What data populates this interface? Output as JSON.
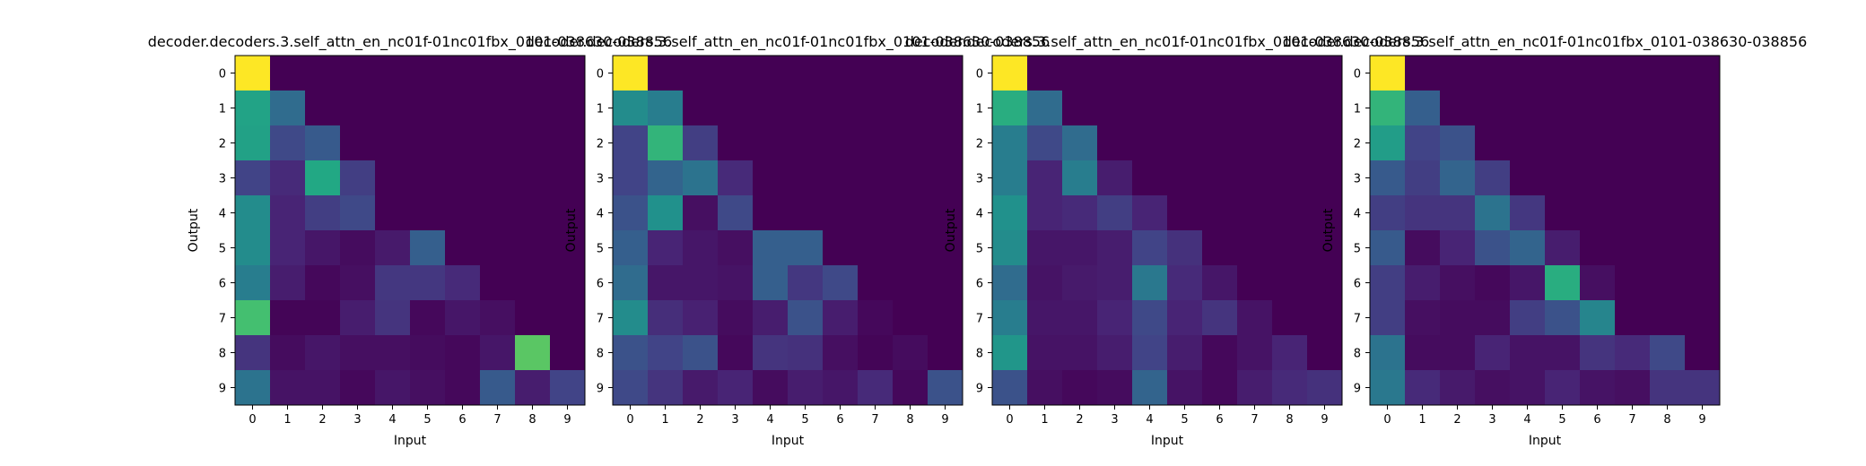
{
  "chart_data": [
    {
      "type": "heatmap",
      "title": "decoder.decoders.3.self_attn_en_nc01f-01nc01fbx_0101-038630-038856",
      "xlabel": "Input",
      "ylabel": "Output",
      "x_ticks": [
        "0",
        "1",
        "2",
        "3",
        "4",
        "5",
        "6",
        "7",
        "8",
        "9"
      ],
      "y_ticks": [
        "0",
        "1",
        "2",
        "3",
        "4",
        "5",
        "6",
        "7",
        "8",
        "9"
      ],
      "colormap": "viridis",
      "values": [
        [
          1.0,
          0.0,
          0.0,
          0.0,
          0.0,
          0.0,
          0.0,
          0.0,
          0.0,
          0.0
        ],
        [
          0.58,
          0.35,
          0.0,
          0.0,
          0.0,
          0.0,
          0.0,
          0.0,
          0.0,
          0.0
        ],
        [
          0.57,
          0.22,
          0.28,
          0.0,
          0.0,
          0.0,
          0.0,
          0.0,
          0.0,
          0.0
        ],
        [
          0.2,
          0.12,
          0.6,
          0.18,
          0.0,
          0.0,
          0.0,
          0.0,
          0.0,
          0.0
        ],
        [
          0.48,
          0.1,
          0.18,
          0.22,
          0.0,
          0.0,
          0.0,
          0.0,
          0.0,
          0.0
        ],
        [
          0.48,
          0.1,
          0.06,
          0.03,
          0.07,
          0.3,
          0.0,
          0.0,
          0.0,
          0.0
        ],
        [
          0.42,
          0.08,
          0.02,
          0.04,
          0.16,
          0.16,
          0.12,
          0.0,
          0.0,
          0.0
        ],
        [
          0.7,
          0.01,
          0.01,
          0.08,
          0.15,
          0.02,
          0.06,
          0.04,
          0.0,
          0.0
        ],
        [
          0.15,
          0.03,
          0.06,
          0.04,
          0.04,
          0.03,
          0.02,
          0.06,
          0.74,
          0.0
        ],
        [
          0.38,
          0.05,
          0.05,
          0.02,
          0.06,
          0.04,
          0.02,
          0.28,
          0.08,
          0.2
        ]
      ]
    },
    {
      "type": "heatmap",
      "title": "decoder.decoders.3.self_attn_en_nc01f-01nc01fbx_0101-038630-038856",
      "xlabel": "Input",
      "ylabel": "Output",
      "x_ticks": [
        "0",
        "1",
        "2",
        "3",
        "4",
        "5",
        "6",
        "7",
        "8",
        "9"
      ],
      "y_ticks": [
        "0",
        "1",
        "2",
        "3",
        "4",
        "5",
        "6",
        "7",
        "8",
        "9"
      ],
      "colormap": "viridis",
      "values": [
        [
          1.0,
          0.0,
          0.0,
          0.0,
          0.0,
          0.0,
          0.0,
          0.0,
          0.0,
          0.0
        ],
        [
          0.48,
          0.42,
          0.0,
          0.0,
          0.0,
          0.0,
          0.0,
          0.0,
          0.0,
          0.0
        ],
        [
          0.2,
          0.65,
          0.18,
          0.0,
          0.0,
          0.0,
          0.0,
          0.0,
          0.0,
          0.0
        ],
        [
          0.2,
          0.32,
          0.38,
          0.12,
          0.0,
          0.0,
          0.0,
          0.0,
          0.0,
          0.0
        ],
        [
          0.25,
          0.5,
          0.04,
          0.22,
          0.0,
          0.0,
          0.0,
          0.0,
          0.0,
          0.0
        ],
        [
          0.3,
          0.1,
          0.06,
          0.04,
          0.3,
          0.3,
          0.0,
          0.0,
          0.0,
          0.0
        ],
        [
          0.35,
          0.06,
          0.06,
          0.05,
          0.3,
          0.16,
          0.22,
          0.0,
          0.0,
          0.0
        ],
        [
          0.48,
          0.13,
          0.09,
          0.03,
          0.08,
          0.25,
          0.08,
          0.02,
          0.0,
          0.0
        ],
        [
          0.25,
          0.2,
          0.25,
          0.02,
          0.15,
          0.14,
          0.04,
          0.01,
          0.03,
          0.0
        ],
        [
          0.22,
          0.15,
          0.07,
          0.1,
          0.03,
          0.08,
          0.06,
          0.12,
          0.02,
          0.25
        ]
      ]
    },
    {
      "type": "heatmap",
      "title": "decoder.decoders.3.self_attn_en_nc01f-01nc01fbx_0101-038630-038856",
      "xlabel": "Input",
      "ylabel": "Output",
      "x_ticks": [
        "0",
        "1",
        "2",
        "3",
        "4",
        "5",
        "6",
        "7",
        "8",
        "9"
      ],
      "y_ticks": [
        "0",
        "1",
        "2",
        "3",
        "4",
        "5",
        "6",
        "7",
        "8",
        "9"
      ],
      "colormap": "viridis",
      "values": [
        [
          1.0,
          0.0,
          0.0,
          0.0,
          0.0,
          0.0,
          0.0,
          0.0,
          0.0,
          0.0
        ],
        [
          0.62,
          0.35,
          0.0,
          0.0,
          0.0,
          0.0,
          0.0,
          0.0,
          0.0,
          0.0
        ],
        [
          0.42,
          0.22,
          0.35,
          0.0,
          0.0,
          0.0,
          0.0,
          0.0,
          0.0,
          0.0
        ],
        [
          0.42,
          0.1,
          0.42,
          0.08,
          0.0,
          0.0,
          0.0,
          0.0,
          0.0,
          0.0
        ],
        [
          0.5,
          0.1,
          0.12,
          0.18,
          0.1,
          0.0,
          0.0,
          0.0,
          0.0,
          0.0
        ],
        [
          0.48,
          0.06,
          0.06,
          0.08,
          0.2,
          0.14,
          0.0,
          0.0,
          0.0,
          0.0
        ],
        [
          0.35,
          0.05,
          0.07,
          0.08,
          0.4,
          0.12,
          0.06,
          0.0,
          0.0,
          0.0
        ],
        [
          0.42,
          0.06,
          0.06,
          0.1,
          0.22,
          0.1,
          0.15,
          0.05,
          0.0,
          0.0
        ],
        [
          0.52,
          0.05,
          0.05,
          0.08,
          0.2,
          0.08,
          0.02,
          0.05,
          0.1,
          0.0
        ],
        [
          0.25,
          0.04,
          0.02,
          0.03,
          0.32,
          0.05,
          0.02,
          0.08,
          0.12,
          0.14
        ]
      ]
    },
    {
      "type": "heatmap",
      "title": "decoder.decoders.3.self_attn_en_nc01f-01nc01fbx_0101-038630-038856",
      "xlabel": "Input",
      "ylabel": "Output",
      "x_ticks": [
        "0",
        "1",
        "2",
        "3",
        "4",
        "5",
        "6",
        "7",
        "8",
        "9"
      ],
      "y_ticks": [
        "0",
        "1",
        "2",
        "3",
        "4",
        "5",
        "6",
        "7",
        "8",
        "9"
      ],
      "colormap": "viridis",
      "values": [
        [
          1.0,
          0.0,
          0.0,
          0.0,
          0.0,
          0.0,
          0.0,
          0.0,
          0.0,
          0.0
        ],
        [
          0.65,
          0.3,
          0.0,
          0.0,
          0.0,
          0.0,
          0.0,
          0.0,
          0.0,
          0.0
        ],
        [
          0.55,
          0.2,
          0.25,
          0.0,
          0.0,
          0.0,
          0.0,
          0.0,
          0.0,
          0.0
        ],
        [
          0.28,
          0.18,
          0.32,
          0.18,
          0.0,
          0.0,
          0.0,
          0.0,
          0.0,
          0.0
        ],
        [
          0.18,
          0.15,
          0.15,
          0.38,
          0.16,
          0.0,
          0.0,
          0.0,
          0.0,
          0.0
        ],
        [
          0.28,
          0.03,
          0.1,
          0.25,
          0.32,
          0.08,
          0.0,
          0.0,
          0.0,
          0.0
        ],
        [
          0.18,
          0.08,
          0.04,
          0.02,
          0.06,
          0.62,
          0.04,
          0.0,
          0.0,
          0.0
        ],
        [
          0.18,
          0.04,
          0.03,
          0.03,
          0.18,
          0.25,
          0.45,
          0.0,
          0.0,
          0.0
        ],
        [
          0.38,
          0.03,
          0.03,
          0.1,
          0.05,
          0.05,
          0.15,
          0.12,
          0.22,
          0.0
        ],
        [
          0.4,
          0.12,
          0.07,
          0.04,
          0.05,
          0.1,
          0.05,
          0.04,
          0.15,
          0.15
        ]
      ]
    }
  ]
}
